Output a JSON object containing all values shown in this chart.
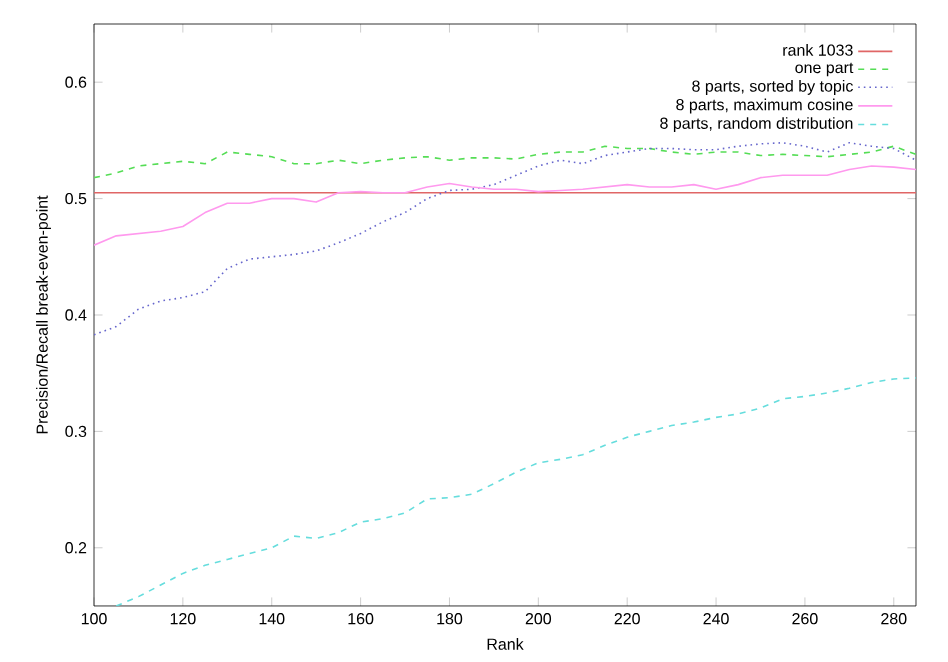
{
  "chart_data": {
    "type": "line",
    "xlabel": "Rank",
    "ylabel": "Precision/Recall break-even-point",
    "xlim": [
      100,
      285
    ],
    "ylim": [
      0.15,
      0.65
    ],
    "xticks": [
      100,
      120,
      140,
      160,
      180,
      200,
      220,
      240,
      260,
      280
    ],
    "yticks": [
      0.2,
      0.3,
      0.4,
      0.5,
      0.6
    ],
    "grid": false,
    "legend": "top right",
    "marker": "none",
    "series": [
      {
        "name": "rank 1033",
        "color": "#e06666",
        "line_style": "solid",
        "x": [
          100,
          285
        ],
        "values": [
          0.505,
          0.505
        ]
      },
      {
        "name": "one part",
        "color": "#55dd55",
        "line_style": "dashed",
        "x": [
          100,
          105,
          110,
          115,
          120,
          125,
          130,
          135,
          140,
          145,
          150,
          155,
          160,
          165,
          170,
          175,
          180,
          185,
          190,
          195,
          200,
          205,
          210,
          215,
          220,
          225,
          230,
          235,
          240,
          245,
          250,
          255,
          260,
          265,
          270,
          275,
          280,
          285
        ],
        "values": [
          0.518,
          0.522,
          0.528,
          0.53,
          0.532,
          0.53,
          0.54,
          0.538,
          0.536,
          0.53,
          0.53,
          0.533,
          0.53,
          0.533,
          0.535,
          0.536,
          0.533,
          0.535,
          0.535,
          0.534,
          0.538,
          0.54,
          0.54,
          0.545,
          0.543,
          0.543,
          0.54,
          0.538,
          0.54,
          0.54,
          0.537,
          0.538,
          0.537,
          0.536,
          0.538,
          0.54,
          0.545,
          0.538
        ]
      },
      {
        "name": "8 parts, sorted by topic",
        "color": "#6666cc",
        "line_style": "dotted",
        "x": [
          100,
          105,
          110,
          115,
          120,
          125,
          130,
          135,
          140,
          145,
          150,
          155,
          160,
          165,
          170,
          175,
          180,
          185,
          190,
          195,
          200,
          205,
          210,
          215,
          220,
          225,
          230,
          235,
          240,
          245,
          250,
          255,
          260,
          265,
          270,
          275,
          280,
          285
        ],
        "values": [
          0.383,
          0.39,
          0.405,
          0.412,
          0.415,
          0.42,
          0.44,
          0.448,
          0.45,
          0.452,
          0.455,
          0.462,
          0.47,
          0.48,
          0.488,
          0.5,
          0.507,
          0.508,
          0.512,
          0.52,
          0.528,
          0.533,
          0.53,
          0.537,
          0.54,
          0.543,
          0.543,
          0.542,
          0.542,
          0.545,
          0.547,
          0.548,
          0.545,
          0.54,
          0.548,
          0.545,
          0.543,
          0.533
        ]
      },
      {
        "name": "8 parts, maximum cosine",
        "color": "#ff99ee",
        "line_style": "solid",
        "x": [
          100,
          105,
          110,
          115,
          120,
          125,
          130,
          135,
          140,
          145,
          150,
          155,
          160,
          165,
          170,
          175,
          180,
          185,
          190,
          195,
          200,
          205,
          210,
          215,
          220,
          225,
          230,
          235,
          240,
          245,
          250,
          255,
          260,
          265,
          270,
          275,
          280,
          285
        ],
        "values": [
          0.46,
          0.468,
          0.47,
          0.472,
          0.476,
          0.488,
          0.496,
          0.496,
          0.5,
          0.5,
          0.497,
          0.505,
          0.506,
          0.505,
          0.505,
          0.51,
          0.513,
          0.51,
          0.508,
          0.508,
          0.506,
          0.507,
          0.508,
          0.51,
          0.512,
          0.51,
          0.51,
          0.512,
          0.508,
          0.512,
          0.518,
          0.52,
          0.52,
          0.52,
          0.525,
          0.528,
          0.527,
          0.525
        ]
      },
      {
        "name": "8 parts, random distribution",
        "color": "#66dddd",
        "line_style": "dashed",
        "x": [
          105,
          110,
          115,
          120,
          125,
          130,
          135,
          140,
          145,
          150,
          155,
          160,
          165,
          170,
          175,
          180,
          185,
          190,
          195,
          200,
          205,
          210,
          215,
          220,
          225,
          230,
          235,
          240,
          245,
          250,
          255,
          260,
          265,
          270,
          275,
          280,
          285
        ],
        "values": [
          0.15,
          0.158,
          0.168,
          0.178,
          0.185,
          0.19,
          0.195,
          0.2,
          0.21,
          0.208,
          0.213,
          0.222,
          0.225,
          0.23,
          0.242,
          0.243,
          0.246,
          0.255,
          0.265,
          0.273,
          0.276,
          0.28,
          0.288,
          0.295,
          0.3,
          0.305,
          0.308,
          0.312,
          0.315,
          0.32,
          0.328,
          0.33,
          0.333,
          0.337,
          0.342,
          0.345,
          0.346
        ]
      }
    ]
  }
}
